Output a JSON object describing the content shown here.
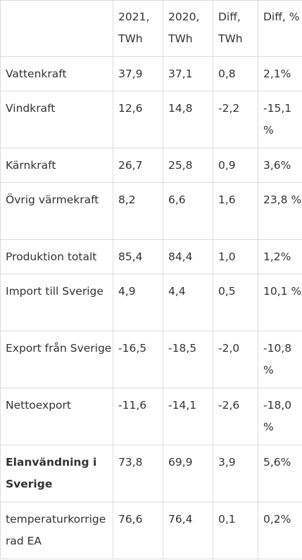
{
  "table": {
    "headers": [
      "",
      "2021, TWh",
      "2020, TWh",
      "Diff, TWh",
      "Diff, %"
    ],
    "rows": [
      {
        "label": "Vattenkraft",
        "v2021": "37,9",
        "v2020": "37,1",
        "diff": "0,8",
        "diff_pct": "2,1%"
      },
      {
        "label": "Vindkraft",
        "v2021": "12,6",
        "v2020": "14,8",
        "diff": "-2,2",
        "diff_pct": "-15,1 %"
      },
      {
        "label": "Kärnkraft",
        "v2021": "26,7",
        "v2020": "25,8",
        "diff": "0,9",
        "diff_pct": "3,6%"
      },
      {
        "label": "Övrig värmekraft",
        "v2021": "8,2",
        "v2020": "6,6",
        "diff": "1,6",
        "diff_pct": "23,8 %"
      },
      {
        "label": "Produktion totalt",
        "v2021": "85,4",
        "v2020": "84,4",
        "diff": "1,0",
        "diff_pct": "1,2%"
      },
      {
        "label": "Import till Sverige",
        "v2021": "4,9",
        "v2020": "4,4",
        "diff": "0,5",
        "diff_pct": "10,1 %"
      },
      {
        "label": "Export från Sverige",
        "v2021": "-16,5",
        "v2020": "-18,5",
        "diff": "-2,0",
        "diff_pct": "-10,8 %"
      },
      {
        "label": "Nettoexport",
        "v2021": "-11,6",
        "v2020": "-14,1",
        "diff": "-2,6",
        "diff_pct": "-18,0 %"
      },
      {
        "label": "Elanvändning i Sverige",
        "v2021": "73,8",
        "v2020": "69,9",
        "diff": "3,9",
        "diff_pct": "5,6%"
      },
      {
        "label": "temperaturkorrige rad EA",
        "v2021": "76,6",
        "v2020": "76,4",
        "diff": "0,1",
        "diff_pct": "0,2%"
      }
    ]
  }
}
